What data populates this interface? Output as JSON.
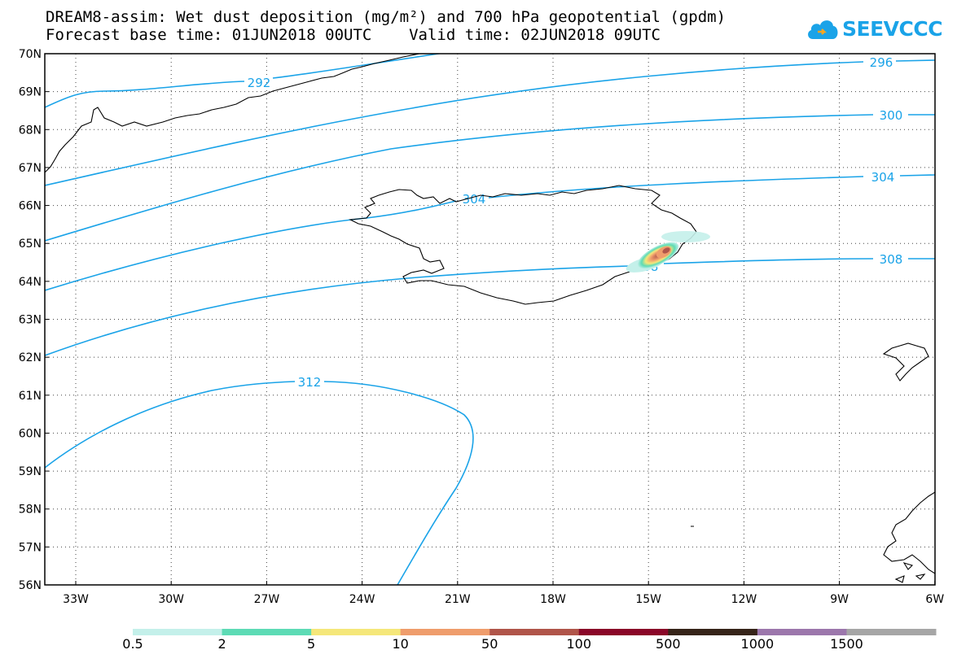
{
  "header": {
    "title_line1": "DREAM8-assim: Wet dust deposition (mg/m²) and 700 hPa geopotential (gpdm)",
    "title_line2": "Forecast base time: 01JUN2018 00UTC    Valid time: 02JUN2018 09UTC"
  },
  "logo": {
    "text": "SEEVCCC",
    "icon": "cloud-logo-icon",
    "color": "#1aa3e8"
  },
  "map": {
    "lat_labels": [
      "70N",
      "69N",
      "68N",
      "67N",
      "66N",
      "65N",
      "64N",
      "63N",
      "62N",
      "61N",
      "60N",
      "59N",
      "58N",
      "57N",
      "56N"
    ],
    "lon_labels": [
      "33W",
      "30W",
      "27W",
      "24W",
      "21W",
      "18W",
      "15W",
      "12W",
      "9W",
      "6W"
    ],
    "contour_color": "#1aa3e8",
    "contours": [
      {
        "label": "292"
      },
      {
        "label": "296"
      },
      {
        "label": "300"
      },
      {
        "label": "304",
        "label2": "304"
      },
      {
        "label": "308",
        "label2": "308"
      },
      {
        "label": "312"
      }
    ]
  },
  "colorbar": {
    "labels": [
      "0.5",
      "2",
      "5",
      "10",
      "50",
      "100",
      "500",
      "1000",
      "1500"
    ],
    "colors": [
      "#c4f0ea",
      "#5ddbb5",
      "#f5e77a",
      "#ef9d6c",
      "#b0554a",
      "#8a0628",
      "#362419",
      "#9c77ac",
      "#a6a6a6"
    ]
  }
}
